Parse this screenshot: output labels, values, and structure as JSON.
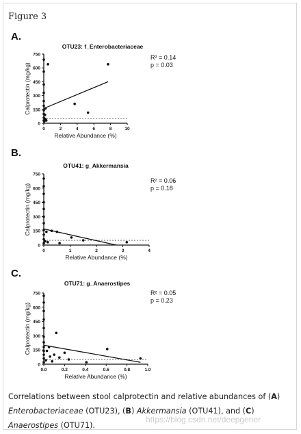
{
  "figure_title": "Figure 3",
  "chart_data": [
    {
      "type": "scatter",
      "panel_label": "A.",
      "title": "OTU23: f_Enterobacteriaceae",
      "xlabel": "Relative Abundance (%)",
      "ylabel": "Calprotectin (mg/kg)",
      "xlim": [
        0,
        10
      ],
      "ylim": [
        0,
        750
      ],
      "xticks": [
        0,
        2,
        4,
        6,
        8,
        10
      ],
      "xtick_labels": [
        "0",
        "2",
        "4",
        "6",
        "8",
        "10"
      ],
      "yticks": [
        0,
        150,
        300,
        450,
        600,
        750
      ],
      "ytick_labels": [
        "0",
        "150",
        "300",
        "450",
        "600",
        "750"
      ],
      "stats": {
        "r2": "R² = 0.14",
        "p": "p = 0.03"
      },
      "threshold": 50,
      "threshold_style": "dashed",
      "fit_line": [
        [
          0,
          160
        ],
        [
          7.7,
          450
        ]
      ],
      "points": [
        [
          0,
          30
        ],
        [
          0,
          60
        ],
        [
          0,
          100
        ],
        [
          0,
          140
        ],
        [
          0,
          190
        ],
        [
          0,
          240
        ],
        [
          0,
          330
        ],
        [
          0,
          420
        ],
        [
          0,
          560
        ],
        [
          0,
          690
        ],
        [
          0.05,
          20
        ],
        [
          0.1,
          50
        ],
        [
          0.15,
          90
        ],
        [
          0.2,
          160
        ],
        [
          0.25,
          40
        ],
        [
          0.3,
          30
        ],
        [
          0.5,
          640
        ],
        [
          3.7,
          210
        ],
        [
          5.3,
          115
        ],
        [
          7.7,
          640
        ]
      ]
    },
    {
      "type": "scatter",
      "panel_label": "B.",
      "title": "OTU41: g_Akkermansia",
      "xlabel": "Relative Abundance (%)",
      "ylabel": "Calprotectin (mg/kg)",
      "xlim": [
        0,
        4
      ],
      "ylim": [
        0,
        750
      ],
      "xticks": [
        0,
        1,
        2,
        3,
        4
      ],
      "xtick_labels": [
        "0",
        "1",
        "2",
        "3",
        "4"
      ],
      "yticks": [
        0,
        150,
        300,
        450,
        600,
        750
      ],
      "ytick_labels": [
        "0",
        "150",
        "300",
        "450",
        "600",
        "750"
      ],
      "stats": {
        "r2": "R² = 0.06",
        "p": "p = 0.18"
      },
      "threshold": 50,
      "threshold_style": "dashed",
      "fit_line": [
        [
          0,
          170
        ],
        [
          2.75,
          0
        ]
      ],
      "points": [
        [
          0,
          20
        ],
        [
          0,
          60
        ],
        [
          0,
          110
        ],
        [
          0,
          160
        ],
        [
          0,
          230
        ],
        [
          0,
          300
        ],
        [
          0,
          380
        ],
        [
          0,
          450
        ],
        [
          0,
          540
        ],
        [
          0,
          620
        ],
        [
          0,
          700
        ],
        [
          0.05,
          40
        ],
        [
          0.1,
          140
        ],
        [
          0.15,
          30
        ],
        [
          0.3,
          150
        ],
        [
          0.5,
          140
        ],
        [
          0.6,
          20
        ],
        [
          1.05,
          80
        ],
        [
          1.5,
          50
        ],
        [
          3.15,
          30
        ]
      ]
    },
    {
      "type": "scatter",
      "panel_label": "C.",
      "title": "OTU71: g_Anaerostipes",
      "xlabel": "Relative Abundance (%)",
      "ylabel": "Calprotectin (mg/kg)",
      "xlim": [
        0,
        1.0
      ],
      "ylim": [
        0,
        750
      ],
      "xticks": [
        0,
        0.2,
        0.4,
        0.6,
        0.8,
        1.0
      ],
      "xtick_labels": [
        "0.0",
        "0.2",
        "0.4",
        "0.6",
        "0.8",
        "1.0"
      ],
      "yticks": [
        0,
        150,
        300,
        450,
        600,
        750
      ],
      "ytick_labels": [
        "0",
        "150",
        "300",
        "450",
        "600",
        "750"
      ],
      "stats": {
        "r2": "R² = 0.05",
        "p": "p = 0.23"
      },
      "threshold": 50,
      "threshold_style": "dashed",
      "fit_line": [
        [
          0,
          200
        ],
        [
          0.93,
          20
        ]
      ],
      "points": [
        [
          0,
          20
        ],
        [
          0,
          60
        ],
        [
          0,
          100
        ],
        [
          0,
          140
        ],
        [
          0,
          180
        ],
        [
          0,
          230
        ],
        [
          0,
          290
        ],
        [
          0,
          380
        ],
        [
          0,
          470
        ],
        [
          0,
          560
        ],
        [
          0,
          650
        ],
        [
          0,
          720
        ],
        [
          0.02,
          40
        ],
        [
          0.03,
          140
        ],
        [
          0.05,
          180
        ],
        [
          0.06,
          80
        ],
        [
          0.08,
          30
        ],
        [
          0.1,
          100
        ],
        [
          0.12,
          330
        ],
        [
          0.15,
          70
        ],
        [
          0.2,
          120
        ],
        [
          0.24,
          50
        ],
        [
          0.41,
          20
        ],
        [
          0.61,
          160
        ],
        [
          0.93,
          60
        ]
      ]
    }
  ],
  "caption": {
    "prefix": "Correlations between stool calprotectin and relative abundances of (",
    "label_a": "A",
    "after_a": ") ",
    "taxon_a": "Enterobacteriaceae",
    "otu_a": " (OTU23), (",
    "label_b": "B",
    "after_b": ") ",
    "taxon_b": "Akkermansia",
    "otu_b": " (OTU41), and (",
    "label_c": "C",
    "after_c": ") ",
    "taxon_c": "Anaerostipes",
    "otu_c": " (OTU71)."
  },
  "watermark": "https://blog.csdn.net/deepgener"
}
